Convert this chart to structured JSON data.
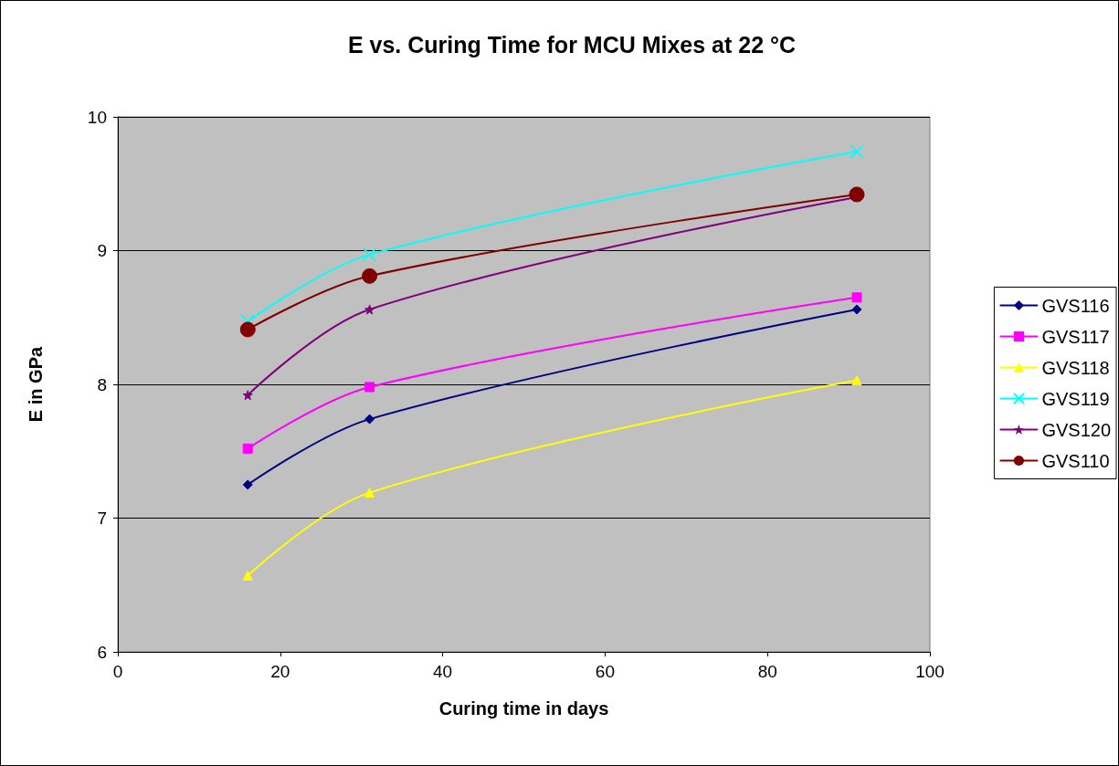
{
  "chart_data": {
    "type": "line",
    "title": "E vs. Curing Time for MCU Mixes at 22 °C",
    "xlabel": "Curing time in days",
    "ylabel": "E in GPa",
    "x": [
      16,
      31,
      91
    ],
    "series": [
      {
        "name": "GVS116",
        "color": "#000080",
        "marker": "diamond",
        "values": [
          7.25,
          7.74,
          8.56
        ]
      },
      {
        "name": "GVS117",
        "color": "#ff00ff",
        "marker": "square",
        "values": [
          7.52,
          7.98,
          8.65
        ]
      },
      {
        "name": "GVS118",
        "color": "#ffff00",
        "marker": "triangle",
        "values": [
          6.57,
          7.19,
          8.03
        ]
      },
      {
        "name": "GVS119",
        "color": "#00ffff",
        "marker": "cross",
        "values": [
          8.47,
          8.97,
          9.74
        ]
      },
      {
        "name": "GVS120",
        "color": "#800080",
        "marker": "star",
        "values": [
          7.92,
          8.56,
          9.4
        ]
      },
      {
        "name": "GVS110",
        "color": "#800000",
        "marker": "circle",
        "values": [
          8.41,
          8.81,
          9.42
        ]
      }
    ],
    "xlim": [
      0,
      100
    ],
    "xticks": [
      0,
      20,
      40,
      60,
      80,
      100
    ],
    "ylim": [
      6,
      10
    ],
    "yticks": [
      6,
      7,
      8,
      9,
      10
    ],
    "grid": "y",
    "legend": "right",
    "line_style": "solid"
  }
}
